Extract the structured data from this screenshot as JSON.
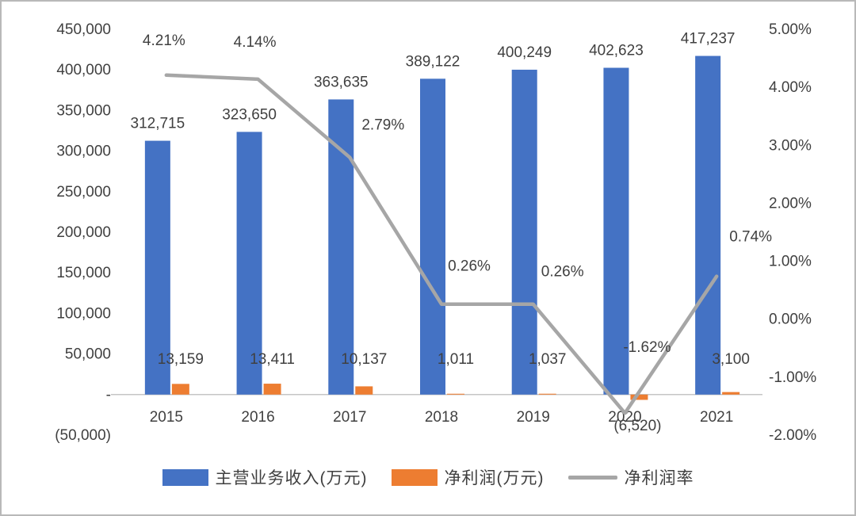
{
  "chart_data": {
    "type": "bar+line combo",
    "categories": [
      "2015",
      "2016",
      "2017",
      "2018",
      "2019",
      "2020",
      "2021"
    ],
    "series": [
      {
        "name": "主营业务收入(万元)",
        "type": "bar",
        "axis": "left",
        "color": "#4472C4",
        "values": [
          312715,
          323650,
          363635,
          389122,
          400249,
          402623,
          417237
        ],
        "labels": [
          "312,715",
          "323,650",
          "363,635",
          "389,122",
          "400,249",
          "402,623",
          "417,237"
        ]
      },
      {
        "name": "净利润(万元)",
        "type": "bar",
        "axis": "left",
        "color": "#ED7D31",
        "values": [
          13159,
          13411,
          10137,
          1011,
          1037,
          -6520,
          3100
        ],
        "labels": [
          "13,159",
          "13,411",
          "10,137",
          "1,011",
          "1,037",
          "(6,520)",
          "3,100"
        ]
      },
      {
        "name": "净利润率",
        "type": "line",
        "axis": "right",
        "color": "#A6A6A6",
        "values": [
          4.21,
          4.14,
          2.79,
          0.26,
          0.26,
          -1.62,
          0.74
        ],
        "labels": [
          "4.21%",
          "4.14%",
          "2.79%",
          "0.26%",
          "0.26%",
          "-1.62%",
          "0.74%"
        ]
      }
    ],
    "left_axis": {
      "min": -50000,
      "max": 450000,
      "step": 50000,
      "tick_labels": [
        "450,000",
        "400,000",
        "350,000",
        "300,000",
        "250,000",
        "200,000",
        "150,000",
        "100,000",
        "50,000",
        "-",
        "(50,000)"
      ]
    },
    "right_axis": {
      "min": -2,
      "max": 5,
      "step": 1,
      "tick_labels": [
        "5.00%",
        "4.00%",
        "3.00%",
        "2.00%",
        "1.00%",
        "0.00%",
        "-1.00%",
        "-2.00%"
      ]
    },
    "grid": "off",
    "legend_position": "bottom",
    "legend": [
      {
        "label": "主营业务收入(万元)",
        "color": "#4472C4",
        "marker": "rect"
      },
      {
        "label": "净利润(万元)",
        "color": "#ED7D31",
        "marker": "rect"
      },
      {
        "label": "净利润率",
        "color": "#A6A6A6",
        "marker": "line"
      }
    ]
  }
}
